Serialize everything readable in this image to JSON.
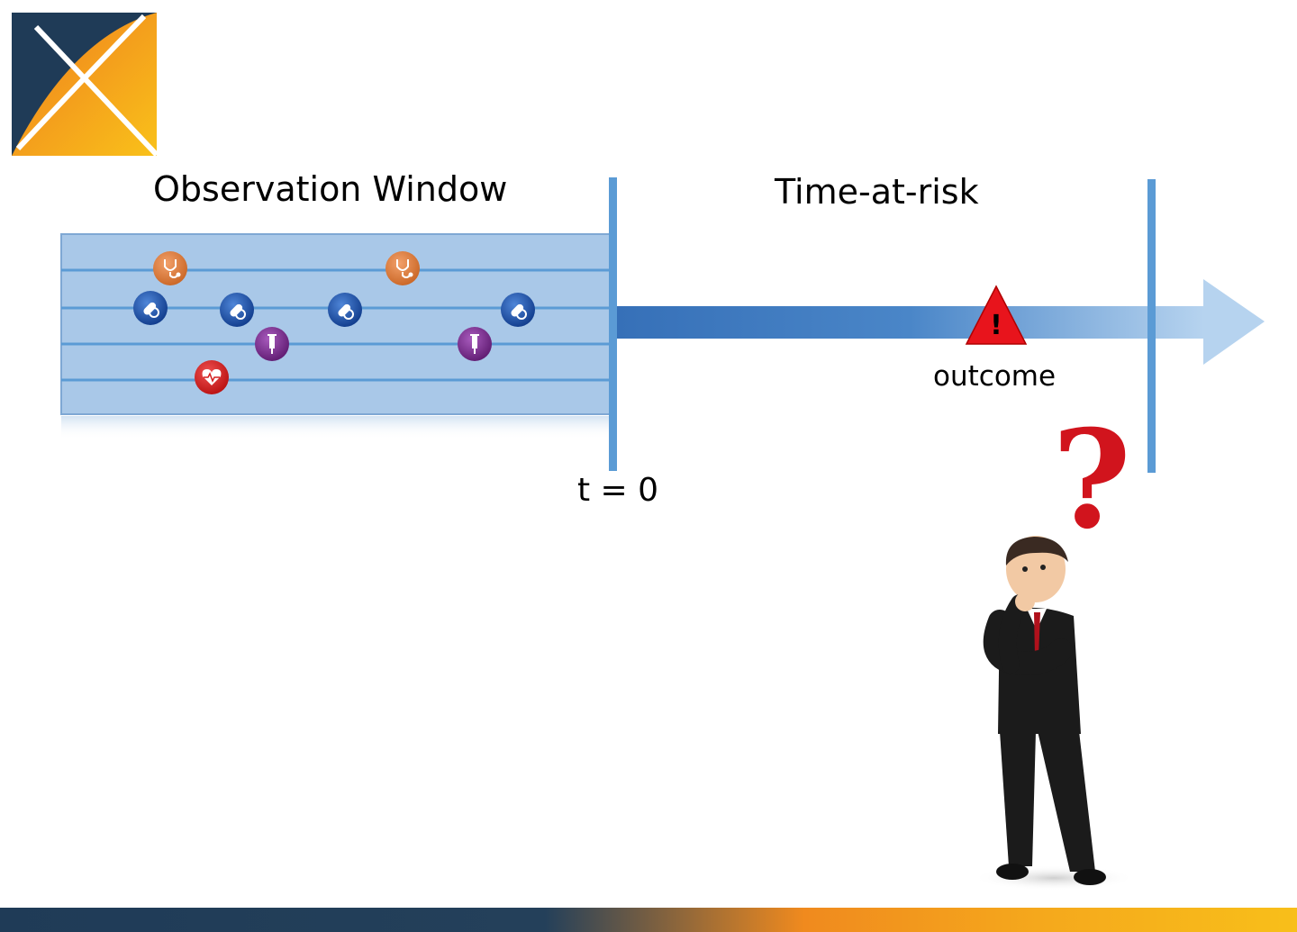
{
  "observation_window": {
    "title": "Observation Window",
    "timeline_count": 5
  },
  "time_at_risk": {
    "title": "Time-at-risk"
  },
  "index_marker": {
    "label": "t = 0"
  },
  "outcome": {
    "label": "outcome",
    "icon": "warning-icon",
    "symbol": "!"
  },
  "event_icons": [
    {
      "type": "stethoscope-icon",
      "color": "#e07b39"
    },
    {
      "type": "pill-icon",
      "color": "#1e4fa8"
    },
    {
      "type": "syringe-icon",
      "color": "#7a2a8c"
    },
    {
      "type": "heart-icon",
      "color": "#d42020"
    }
  ],
  "figure": {
    "icon": "thinking-man-icon",
    "question_mark": "?"
  },
  "colors": {
    "window_fill": "#a9c8e8",
    "window_line": "#5b9bd5",
    "arrow": "#3a78c0",
    "logo_dark": "#1f3b57",
    "logo_orange": "#f08a1e"
  }
}
